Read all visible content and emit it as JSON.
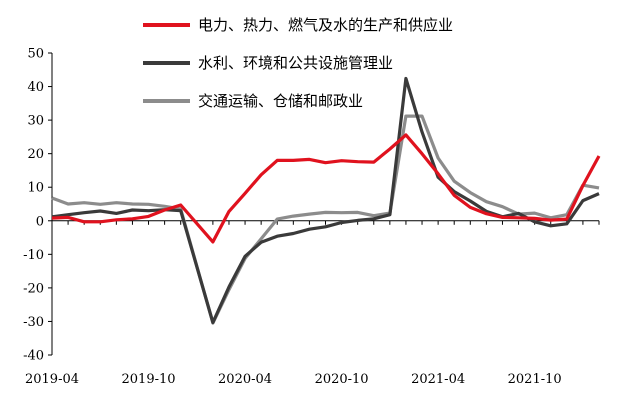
{
  "chart_data": {
    "type": "line",
    "x": [
      "2019-04",
      "2019-05",
      "2019-06",
      "2019-07",
      "2019-08",
      "2019-09",
      "2019-10",
      "2019-11",
      "2019-12",
      "2020-01",
      "2020-02",
      "2020-03",
      "2020-04",
      "2020-05",
      "2020-06",
      "2020-07",
      "2020-08",
      "2020-09",
      "2020-10",
      "2020-11",
      "2020-12",
      "2021-01",
      "2021-02",
      "2021-03",
      "2021-04",
      "2021-05",
      "2021-06",
      "2021-07",
      "2021-08",
      "2021-09",
      "2021-10",
      "2021-11",
      "2021-12",
      "2022-01",
      "2022-02"
    ],
    "xtick_labels": [
      "2019-04",
      "2019-10",
      "2020-04",
      "2020-10",
      "2021-04",
      "2021-10"
    ],
    "xtick_values": [
      "2019-04",
      "2019-10",
      "2020-04",
      "2020-10",
      "2021-04",
      "2021-10"
    ],
    "ylim": [
      -40,
      50
    ],
    "yticks": [
      -40,
      -30,
      -20,
      -10,
      0,
      10,
      20,
      30,
      40,
      50
    ],
    "xlabel": "",
    "ylabel": "",
    "title": "",
    "grid": false,
    "legend_position": "top",
    "series": [
      {
        "name": "电力、热力、燃气及水的生产和供应业",
        "color": "#e0121e",
        "values": [
          0.8,
          1.0,
          -0.3,
          -0.3,
          0.3,
          0.6,
          1.3,
          3.2,
          4.7,
          null,
          -6.3,
          2.8,
          8.2,
          13.7,
          18.0,
          18.0,
          18.3,
          17.3,
          17.9,
          17.6,
          17.5,
          21.4,
          25.6,
          20.0,
          14.0,
          7.6,
          4.0,
          2.1,
          1.0,
          0.9,
          0.7,
          0.2,
          0.5,
          10.5,
          19.3
        ]
      },
      {
        "name": "水利、环境和公共设施管理业",
        "color": "#3a3a3a",
        "values": [
          1.2,
          1.8,
          2.4,
          2.9,
          2.2,
          3.2,
          3.0,
          3.3,
          3.0,
          null,
          -30.3,
          -19.7,
          -10.6,
          -6.4,
          -4.6,
          -3.8,
          -2.5,
          -1.8,
          -0.5,
          0.1,
          0.6,
          1.8,
          42.4,
          26.5,
          13.0,
          8.7,
          5.9,
          2.8,
          1.2,
          2.2,
          -0.3,
          -1.5,
          -0.9,
          6.0,
          8.1
        ]
      },
      {
        "name": "交通运输、仓储和邮政业",
        "color": "#8c8c8c",
        "values": [
          6.8,
          5.0,
          5.4,
          4.9,
          5.4,
          5.0,
          4.9,
          4.3,
          3.5,
          null,
          -30.5,
          -20.5,
          -11.2,
          -5.4,
          0.5,
          1.4,
          2.0,
          2.5,
          2.4,
          2.5,
          1.5,
          2.3,
          31.2,
          31.2,
          18.7,
          11.8,
          8.4,
          5.7,
          4.2,
          2.0,
          2.3,
          0.9,
          1.8,
          10.6,
          9.8
        ]
      }
    ]
  }
}
